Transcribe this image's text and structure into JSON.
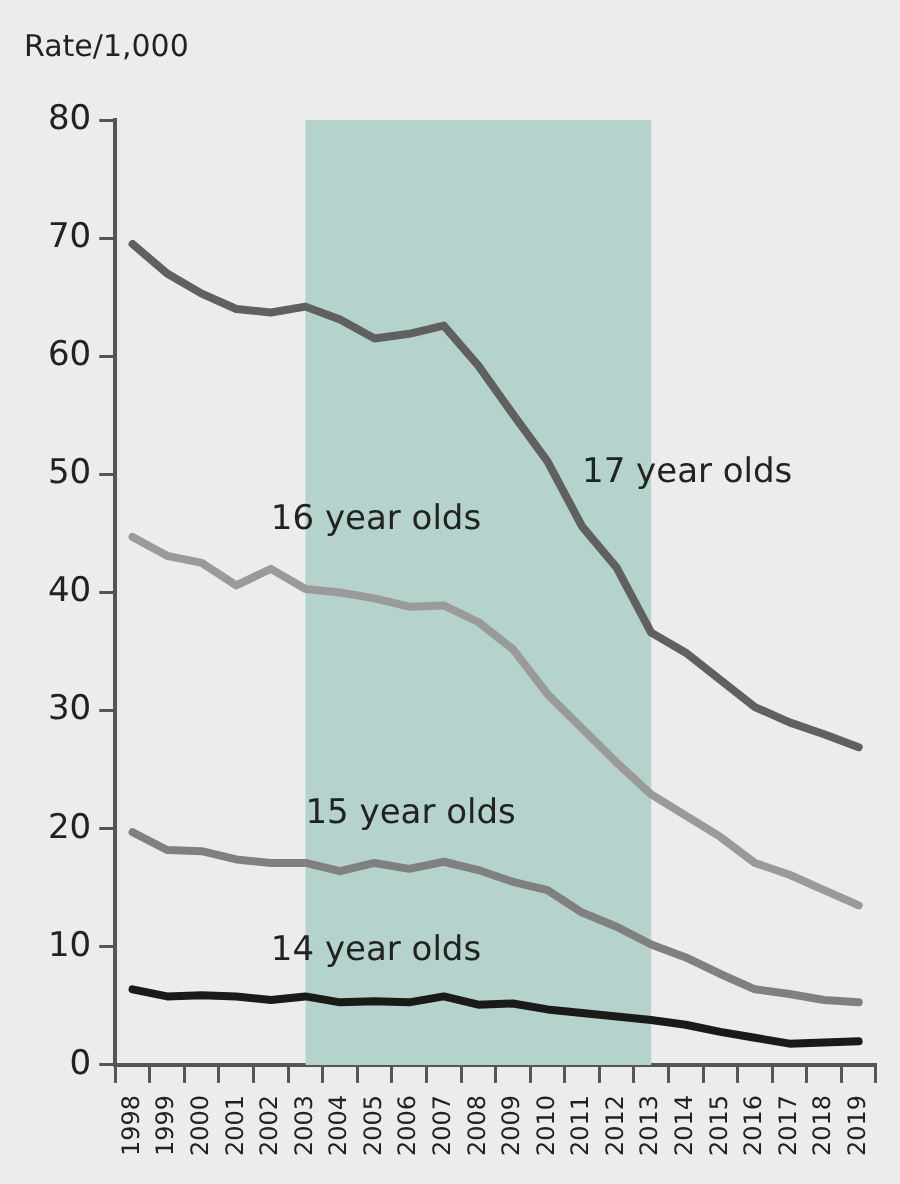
{
  "chart_data": {
    "type": "line",
    "ylabel": "Rate/1,000",
    "categories": [
      "1998",
      "1999",
      "2000",
      "2001",
      "2002",
      "2003",
      "2004",
      "2005",
      "2006",
      "2007",
      "2008",
      "2009",
      "2010",
      "2011",
      "2012",
      "2013",
      "2014",
      "2015",
      "2016",
      "2017",
      "2018",
      "2019"
    ],
    "series": [
      {
        "name": "17 year olds",
        "color": "#606060",
        "values": [
          69.5,
          67.0,
          65.3,
          64.0,
          63.7,
          64.2,
          63.1,
          61.5,
          61.9,
          62.6,
          59.2,
          55.1,
          51.1,
          45.6,
          42.1,
          36.6,
          34.9,
          32.6,
          30.3,
          29.0,
          28.0,
          26.9
        ]
      },
      {
        "name": "16 year olds",
        "color": "#9a9a9a",
        "values": [
          44.7,
          43.1,
          42.5,
          40.6,
          42.0,
          40.3,
          40.0,
          39.5,
          38.8,
          38.9,
          37.5,
          35.2,
          31.4,
          28.5,
          25.6,
          22.9,
          21.1,
          19.3,
          17.1,
          16.1,
          14.8,
          13.5
        ]
      },
      {
        "name": "15 year olds",
        "color": "#808080",
        "values": [
          19.7,
          18.2,
          18.1,
          17.4,
          17.1,
          17.1,
          16.4,
          17.1,
          16.6,
          17.2,
          16.5,
          15.5,
          14.8,
          12.9,
          11.7,
          10.2,
          9.1,
          7.7,
          6.4,
          6.0,
          5.5,
          5.3
        ]
      },
      {
        "name": "14 year olds",
        "color": "#1a1a1a",
        "values": [
          6.4,
          5.8,
          5.9,
          5.8,
          5.5,
          5.8,
          5.3,
          5.4,
          5.3,
          5.8,
          5.1,
          5.2,
          4.7,
          4.4,
          4.1,
          3.8,
          3.4,
          2.8,
          2.3,
          1.8,
          1.9,
          2.0
        ]
      }
    ],
    "ylim": [
      0,
      80
    ],
    "yticks": [
      0,
      10,
      20,
      30,
      40,
      50,
      60,
      70,
      80
    ],
    "bands": [
      {
        "axis": "x",
        "from": "2003",
        "to": "2013",
        "color": "#b3d3cc"
      }
    ],
    "grid": false,
    "legend": false,
    "marker": "none",
    "line_style": "solid"
  }
}
